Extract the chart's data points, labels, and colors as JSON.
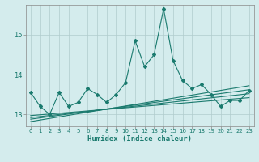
{
  "xlabel": "Humidex (Indice chaleur)",
  "bg_color": "#d4eced",
  "grid_color": "#b0cccc",
  "line_color": "#1a7a6e",
  "xlim": [
    -0.5,
    23.5
  ],
  "ylim": [
    12.7,
    15.75
  ],
  "yticks": [
    13,
    14,
    15
  ],
  "xticks": [
    0,
    1,
    2,
    3,
    4,
    5,
    6,
    7,
    8,
    9,
    10,
    11,
    12,
    13,
    14,
    15,
    16,
    17,
    18,
    19,
    20,
    21,
    22,
    23
  ],
  "main_x": [
    0,
    1,
    2,
    3,
    4,
    5,
    6,
    7,
    8,
    9,
    10,
    11,
    12,
    13,
    14,
    15,
    16,
    17,
    18,
    19,
    20,
    21,
    22,
    23
  ],
  "main_y": [
    13.55,
    13.2,
    13.0,
    13.55,
    13.2,
    13.3,
    13.65,
    13.5,
    13.3,
    13.5,
    13.8,
    14.85,
    14.2,
    14.5,
    15.65,
    14.35,
    13.85,
    13.65,
    13.75,
    13.5,
    13.2,
    13.35,
    13.35,
    13.6
  ],
  "trend_lines": [
    {
      "x": [
        0,
        23
      ],
      "y": [
        12.88,
        13.62
      ]
    },
    {
      "x": [
        0,
        23
      ],
      "y": [
        12.82,
        13.72
      ]
    },
    {
      "x": [
        0,
        23
      ],
      "y": [
        12.92,
        13.52
      ]
    },
    {
      "x": [
        0,
        23
      ],
      "y": [
        12.97,
        13.42
      ]
    }
  ]
}
